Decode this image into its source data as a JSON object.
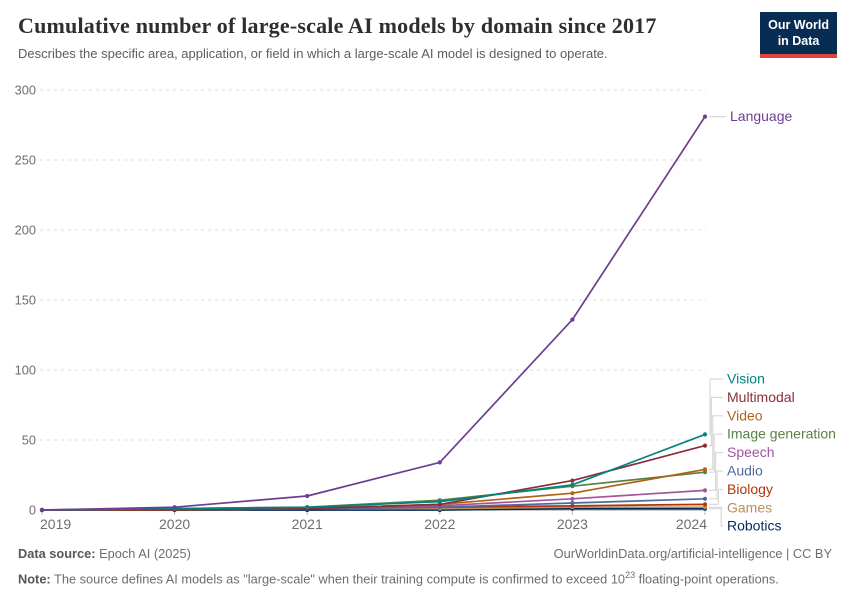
{
  "header": {
    "title": "Cumulative number of large-scale AI models by domain since 2017",
    "subtitle": "Describes the specific area, application, or field in which a large-scale AI model is designed to operate.",
    "logo": {
      "line1": "Our World",
      "line2": "in Data",
      "bg_color": "#082D54",
      "accent_color": "#E0443A"
    }
  },
  "chart_data": {
    "type": "line",
    "x": [
      2019,
      2020,
      2021,
      2022,
      2023,
      2024
    ],
    "series": [
      {
        "name": "Language",
        "color": "#6D3E91",
        "values": [
          0,
          2,
          10,
          34,
          136,
          281
        ]
      },
      {
        "name": "Vision",
        "color": "#00847E",
        "values": [
          0,
          1,
          2,
          6,
          18,
          54
        ]
      },
      {
        "name": "Multimodal",
        "color": "#883039",
        "values": [
          0,
          0,
          1,
          4,
          21,
          46
        ]
      },
      {
        "name": "Video",
        "color": "#B16214",
        "values": [
          0,
          0,
          1,
          4,
          12,
          29
        ]
      },
      {
        "name": "Image generation",
        "color": "#578145",
        "values": [
          0,
          0,
          2,
          7,
          17,
          27
        ]
      },
      {
        "name": "Speech",
        "color": "#A2559C",
        "values": [
          0,
          1,
          2,
          3,
          8,
          14
        ]
      },
      {
        "name": "Audio",
        "color": "#4C6A9C",
        "values": [
          0,
          0,
          1,
          2,
          5,
          8
        ]
      },
      {
        "name": "Biology",
        "color": "#B13507",
        "values": [
          0,
          0,
          1,
          2,
          3,
          4
        ]
      },
      {
        "name": "Games",
        "color": "#BC8E5A",
        "values": [
          0,
          0,
          1,
          1,
          2,
          2
        ]
      },
      {
        "name": "Robotics",
        "color": "#00295B",
        "values": [
          0,
          0,
          0,
          0,
          1,
          1
        ]
      }
    ],
    "title": "Cumulative number of large-scale AI models by domain since 2017",
    "xlabel": "",
    "ylabel": "",
    "ylim": [
      0,
      300
    ],
    "yticks": [
      0,
      50,
      100,
      150,
      200,
      250,
      300
    ],
    "grid": "horizontal dashed",
    "legend_position": "right-edge direct labels with gray connectors"
  },
  "footer": {
    "source_label": "Data source:",
    "source_value": " Epoch AI (2025)",
    "attribution": "OurWorldinData.org/artificial-intelligence | CC BY",
    "note_label": "Note:",
    "note_body": " The source defines AI models as \"large-scale\" when their training compute is confirmed to exceed 10",
    "note_exponent": "23",
    "note_tail": " floating-point operations."
  }
}
